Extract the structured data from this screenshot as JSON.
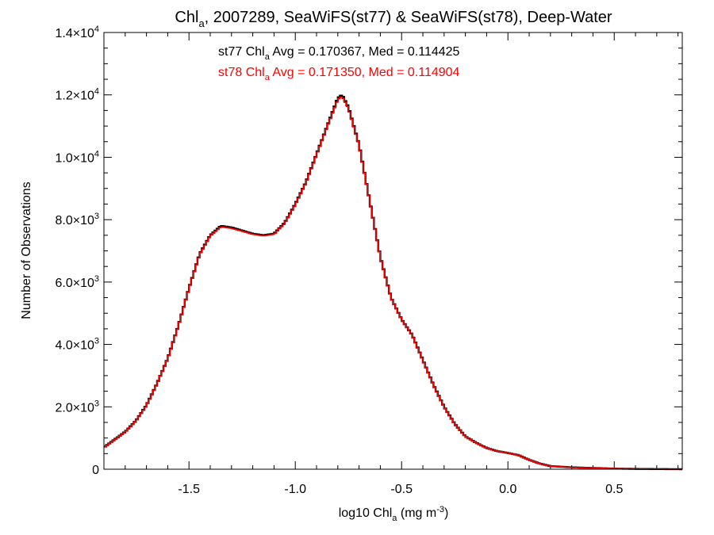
{
  "chart_data": {
    "type": "line",
    "title": {
      "prefix": "Chl",
      "subscript": "a",
      "suffix": ", 2007289, SeaWiFS(st77) & SeaWiFS(st78), Deep-Water"
    },
    "xlabel": {
      "prefix": "log10 Chl",
      "subscript": "a",
      "middle": " (mg m",
      "superscript": "-3",
      "suffix": ")"
    },
    "ylabel": "Number of Observations",
    "xlim": [
      -1.9,
      0.82
    ],
    "ylim": [
      0,
      14000
    ],
    "x_ticks": [
      {
        "value": -1.5,
        "label": "-1.5"
      },
      {
        "value": -1.0,
        "label": "-1.0"
      },
      {
        "value": -0.5,
        "label": "-0.5"
      },
      {
        "value": 0.0,
        "label": "0.0"
      },
      {
        "value": 0.5,
        "label": "0.5"
      }
    ],
    "y_ticks": [
      {
        "value": 0,
        "label": "0",
        "exp": ""
      },
      {
        "value": 2000,
        "label": "2.0×10",
        "exp": "3"
      },
      {
        "value": 4000,
        "label": "4.0×10",
        "exp": "3"
      },
      {
        "value": 6000,
        "label": "6.0×10",
        "exp": "3"
      },
      {
        "value": 8000,
        "label": "8.0×10",
        "exp": "3"
      },
      {
        "value": 10000,
        "label": "1.0×10",
        "exp": "4"
      },
      {
        "value": 12000,
        "label": "1.2×10",
        "exp": "4"
      },
      {
        "value": 14000,
        "label": "1.4×10",
        "exp": "4"
      }
    ],
    "grid": false,
    "annotations": [
      {
        "series": "st77",
        "prefix": "st77 Chl",
        "subscript": "a",
        "suffix": " Avg = 0.170367, Med = 0.114425",
        "color": "#000000"
      },
      {
        "series": "st78",
        "prefix": "st78 Chl",
        "subscript": "a",
        "suffix": " Avg = 0.171350, Med = 0.114904",
        "color": "#ff0000"
      }
    ],
    "step": 0.01,
    "anchors_x": [
      -1.9,
      -1.85,
      -1.8,
      -1.75,
      -1.7,
      -1.65,
      -1.6,
      -1.55,
      -1.5,
      -1.45,
      -1.4,
      -1.35,
      -1.3,
      -1.25,
      -1.2,
      -1.15,
      -1.1,
      -1.05,
      -1.0,
      -0.95,
      -0.9,
      -0.85,
      -0.8,
      -0.78,
      -0.75,
      -0.7,
      -0.65,
      -0.6,
      -0.55,
      -0.5,
      -0.45,
      -0.4,
      -0.35,
      -0.3,
      -0.25,
      -0.2,
      -0.15,
      -0.1,
      -0.05,
      0.0,
      0.05,
      0.1,
      0.15,
      0.2,
      0.3,
      0.4,
      0.5,
      0.6,
      0.7,
      0.82
    ],
    "series": [
      {
        "name": "st77",
        "color": "#000000",
        "values": [
          700,
          950,
          1200,
          1550,
          2050,
          2750,
          3550,
          4600,
          5800,
          6900,
          7500,
          7800,
          7750,
          7650,
          7550,
          7500,
          7550,
          7900,
          8500,
          9200,
          10100,
          11000,
          11900,
          12000,
          11600,
          10400,
          8600,
          6800,
          5500,
          4800,
          4300,
          3500,
          2700,
          2000,
          1450,
          1050,
          850,
          680,
          580,
          520,
          450,
          300,
          180,
          100,
          60,
          40,
          20,
          10,
          5,
          0
        ]
      },
      {
        "name": "st78",
        "color": "#ff0000",
        "values": [
          690,
          940,
          1190,
          1540,
          2040,
          2740,
          3540,
          4590,
          5790,
          6880,
          7480,
          7770,
          7720,
          7630,
          7530,
          7480,
          7530,
          7880,
          8480,
          9180,
          10080,
          10980,
          11850,
          11950,
          11570,
          10380,
          8590,
          6790,
          5490,
          4790,
          4290,
          3490,
          2690,
          1990,
          1440,
          1045,
          845,
          675,
          578,
          518,
          448,
          298,
          178,
          98,
          58,
          38,
          19,
          9,
          4,
          0
        ]
      }
    ]
  }
}
